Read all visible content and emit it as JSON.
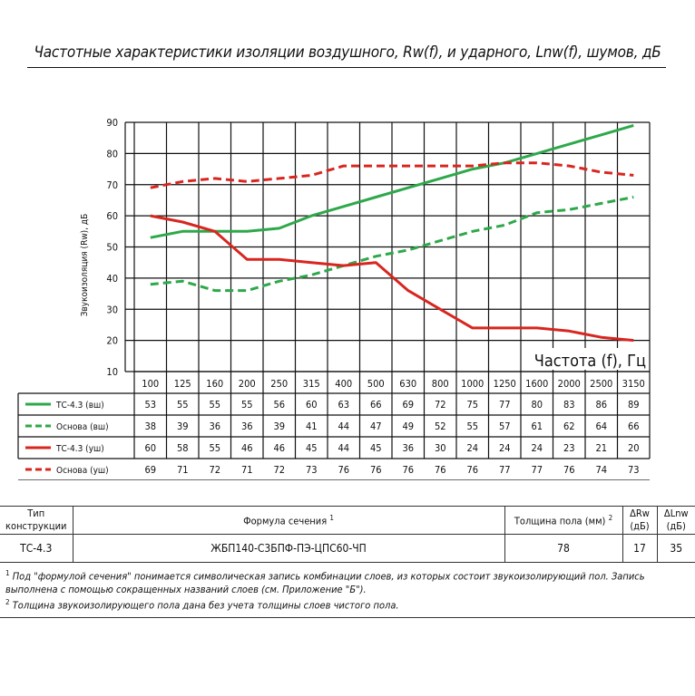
{
  "page_title": "Частотные характеристики изоляции воздушного, Rw(f), и ударного, Lnw(f), шумов, дБ",
  "chart_data": {
    "type": "line",
    "ylabel": "Звукоизоляция (Rw), дБ",
    "xlabel": "Частота (f), Гц",
    "ylim": [
      10,
      90
    ],
    "yticks": [
      10,
      20,
      30,
      40,
      50,
      60,
      70,
      80,
      90
    ],
    "grid": true,
    "categories": [
      "100",
      "125",
      "160",
      "200",
      "250",
      "315",
      "400",
      "500",
      "630",
      "800",
      "1000",
      "1250",
      "1600",
      "2000",
      "2500",
      "3150"
    ],
    "series": [
      {
        "name": "ТС-4.3 (вш)",
        "color": "#2ea84a",
        "dashed": false,
        "values": [
          53,
          55,
          55,
          55,
          56,
          60,
          63,
          66,
          69,
          72,
          75,
          77,
          80,
          83,
          86,
          89
        ]
      },
      {
        "name": "Основа (вш)",
        "color": "#2ea84a",
        "dashed": true,
        "values": [
          38,
          39,
          36,
          36,
          39,
          41,
          44,
          47,
          49,
          52,
          55,
          57,
          61,
          62,
          64,
          66
        ]
      },
      {
        "name": "ТС-4.3 (уш)",
        "color": "#d8261f",
        "dashed": false,
        "values": [
          60,
          58,
          55,
          46,
          46,
          45,
          44,
          45,
          36,
          30,
          24,
          24,
          24,
          23,
          21,
          20
        ]
      },
      {
        "name": "Основа (уш)",
        "color": "#d8261f",
        "dashed": true,
        "values": [
          69,
          71,
          72,
          71,
          72,
          73,
          76,
          76,
          76,
          76,
          76,
          77,
          77,
          76,
          74,
          73
        ]
      }
    ]
  },
  "table": {
    "headers": {
      "type": "Тип конструкции",
      "formula": "Формула сечения",
      "formula_sup": "1",
      "thickness": "Толщина пола (мм)",
      "thickness_sup": "2",
      "drw": "ΔRw (дБ)",
      "dlnw": "ΔLnw (дБ)"
    },
    "row": {
      "type": "ТС-4.3",
      "formula": "ЖБП140-С3БПФ-ПЭ-ЦПС60-ЧП",
      "thickness": "78",
      "drw": "17",
      "dlnw": "35"
    },
    "notes": [
      {
        "sup": "1",
        "text": "Под \"формулой сечения\" понимается символическая запись комбинации слоев, из которых состоит звукоизолирующий пол. Запись выполнена с помощью сокращенных названий слоев (см. Приложение \"Б\")."
      },
      {
        "sup": "2",
        "text": "Толщина звукоизолирующего пола дана без учета толщины слоев чистого пола."
      }
    ]
  }
}
